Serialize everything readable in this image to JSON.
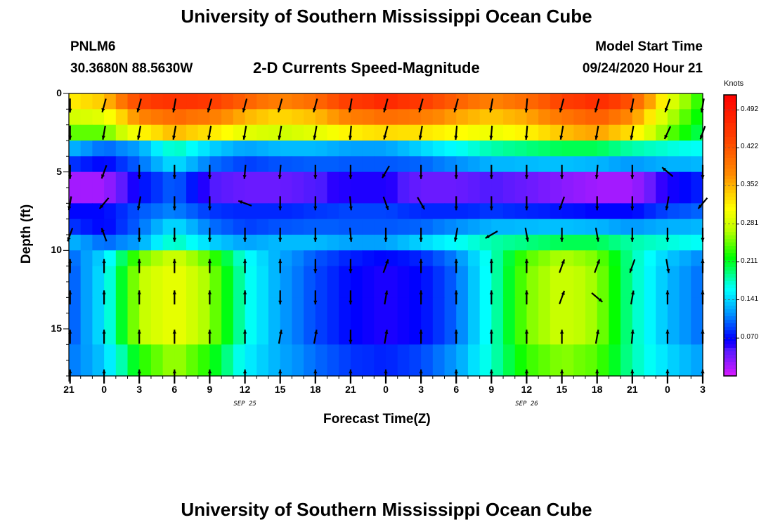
{
  "page": {
    "title_top": "University of Southern Mississippi Ocean Cube",
    "title_bottom": "University of Southern Mississippi Ocean Cube",
    "station": "PNLM6",
    "coords": "30.3680N 88.5630W",
    "model_label": "Model Start Time",
    "model_time": "09/24/2020 Hour 21"
  },
  "chart_data": {
    "type": "heatmap",
    "title": "2-D Currents Speed-Magnitude",
    "xlabel": "Forecast Time(Z)",
    "ylabel": "Depth (ft)",
    "x_hours": [
      0,
      54
    ],
    "x_ticks": [
      {
        "h": 0,
        "label": "21"
      },
      {
        "h": 3,
        "label": "0"
      },
      {
        "h": 6,
        "label": "3"
      },
      {
        "h": 9,
        "label": "6"
      },
      {
        "h": 12,
        "label": "9"
      },
      {
        "h": 15,
        "label": "12"
      },
      {
        "h": 18,
        "label": "15"
      },
      {
        "h": 21,
        "label": "18"
      },
      {
        "h": 24,
        "label": "21"
      },
      {
        "h": 27,
        "label": "0"
      },
      {
        "h": 30,
        "label": "3"
      },
      {
        "h": 33,
        "label": "6"
      },
      {
        "h": 36,
        "label": "9"
      },
      {
        "h": 39,
        "label": "12"
      },
      {
        "h": 42,
        "label": "15"
      },
      {
        "h": 45,
        "label": "18"
      },
      {
        "h": 48,
        "label": "21"
      },
      {
        "h": 51,
        "label": "0"
      },
      {
        "h": 54,
        "label": "3"
      }
    ],
    "date_labels": [
      {
        "h": 15,
        "label": "SEP 25"
      },
      {
        "h": 39,
        "label": "SEP 26"
      }
    ],
    "y_range": [
      0,
      18
    ],
    "y_ticks": [
      0,
      5,
      10,
      15
    ],
    "colorbar": {
      "unit": "Knots",
      "range": [
        0.0,
        0.52
      ],
      "ticks": [
        "0.492",
        "0.422",
        "0.352",
        "0.281",
        "0.211",
        "0.141",
        "0.070"
      ],
      "tick_values": [
        0.492,
        0.422,
        0.352,
        0.281,
        0.211,
        0.141,
        0.07
      ]
    },
    "speed_profiles": {
      "depths_ft": [
        0.5,
        1.5,
        2.5,
        3.5,
        4.5,
        5.5,
        6.5,
        7.5,
        8.5,
        9.5,
        10.5,
        11.5,
        12.5,
        13.5,
        14.5,
        15.5,
        16.5,
        17.5
      ],
      "hours": [
        0,
        3,
        6,
        9,
        12,
        15,
        18,
        21,
        24,
        27,
        30,
        33,
        36,
        39,
        42,
        45,
        48,
        51,
        54
      ],
      "F": [
        0.13,
        0.1,
        0.12,
        0.18,
        0.14,
        0.12,
        0.13,
        0.13,
        0.12,
        0.12,
        0.14,
        0.16,
        0.18,
        0.19,
        0.2,
        0.2,
        0.18,
        0.17,
        0.16
      ],
      "A": [
        0.09,
        0.15,
        0.27,
        0.3,
        0.26,
        0.17,
        0.12,
        0.09,
        0.07,
        0.06,
        0.07,
        0.1,
        0.17,
        0.25,
        0.28,
        0.26,
        0.18,
        0.13,
        0.1
      ],
      "B": [
        0.32,
        0.34,
        0.44,
        0.46,
        0.45,
        0.41,
        0.38,
        0.4,
        0.45,
        0.47,
        0.45,
        0.41,
        0.38,
        0.4,
        0.44,
        0.47,
        0.42,
        0.3,
        0.22
      ],
      "D": [
        0.02,
        0.02,
        0.07,
        0.1,
        0.05,
        0.04,
        0.04,
        0.05,
        0.06,
        0.06,
        0.04,
        0.04,
        0.05,
        0.04,
        0.03,
        0.02,
        0.02,
        0.06,
        0.08
      ]
    },
    "arrow_hours": [
      0.1,
      3,
      6,
      9,
      12,
      15,
      18,
      21,
      24,
      27,
      30,
      33,
      36,
      39,
      42,
      45,
      48,
      51,
      54
    ],
    "arrow_depths": [
      0.5,
      2.5,
      5,
      7,
      9,
      11,
      13,
      15.5,
      17.5
    ],
    "arrow_dirs_deg": [
      [
        180,
        195,
        195,
        190,
        195,
        195,
        195,
        195,
        190,
        195,
        195,
        195,
        190,
        185,
        195,
        195,
        190,
        200,
        190
      ],
      [
        180,
        190,
        190,
        190,
        190,
        190,
        190,
        190,
        185,
        195,
        190,
        185,
        185,
        185,
        190,
        190,
        190,
        205,
        200
      ],
      [
        180,
        200,
        180,
        180,
        180,
        185,
        185,
        180,
        180,
        210,
        180,
        180,
        180,
        180,
        180,
        185,
        180,
        310,
        180
      ],
      [
        190,
        220,
        190,
        180,
        180,
        290,
        180,
        180,
        175,
        160,
        150,
        180,
        180,
        180,
        200,
        180,
        180,
        190,
        220
      ],
      [
        200,
        340,
        180,
        180,
        180,
        180,
        180,
        180,
        175,
        180,
        180,
        190,
        240,
        170,
        180,
        170,
        180,
        180,
        180
      ],
      [
        0,
        0,
        0,
        0,
        0,
        0,
        0,
        180,
        180,
        20,
        0,
        0,
        0,
        0,
        20,
        20,
        200,
        170,
        0
      ],
      [
        0,
        0,
        0,
        0,
        0,
        0,
        180,
        180,
        180,
        10,
        0,
        0,
        0,
        0,
        20,
        130,
        10,
        0,
        0
      ],
      [
        0,
        0,
        0,
        0,
        0,
        0,
        10,
        10,
        180,
        10,
        0,
        0,
        0,
        0,
        0,
        10,
        5,
        0,
        0
      ],
      [
        0,
        0,
        0,
        0,
        0,
        0,
        0,
        0,
        0,
        0,
        0,
        0,
        0,
        0,
        0,
        0,
        0,
        0,
        0
      ]
    ]
  }
}
